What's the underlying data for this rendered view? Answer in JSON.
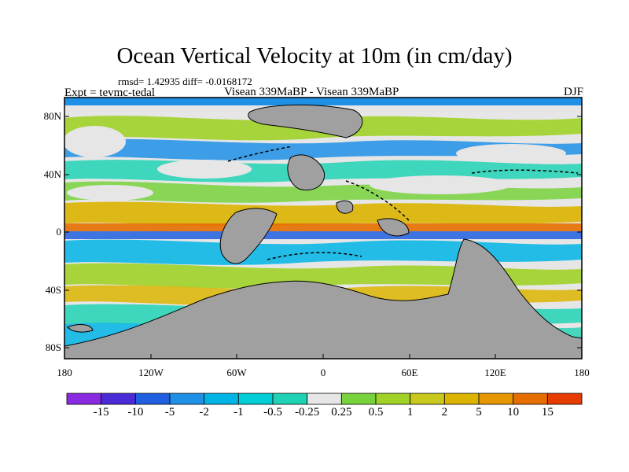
{
  "title": "Ocean Vertical Velocity at 10m (in cm/day)",
  "stats": "rmsd= 1.42935 diff= -0.0168172",
  "experiment": "Expt = tevmc-tedal",
  "subtitle": "Visean 339MaBP - Visean 339MaBP",
  "season": "DJF",
  "lat_ticks": [
    "80N",
    "40N",
    "0",
    "40S",
    "80S"
  ],
  "lon_ticks": [
    "180",
    "120W",
    "60W",
    "0",
    "60E",
    "120E",
    "180"
  ],
  "colorbar": {
    "colors": [
      "#8a2be2",
      "#4b2bd6",
      "#1f5fe0",
      "#1e90e6",
      "#00b4e6",
      "#00cdd6",
      "#20d2b4",
      "#e6e6e6",
      "#78d23c",
      "#a0d228",
      "#c8c81e",
      "#dcb400",
      "#e69600",
      "#e66e00",
      "#e63c00"
    ],
    "labels": [
      "-15",
      "-10",
      "-5",
      "-2",
      "-1",
      "-0.5",
      "-0.25",
      "0.25",
      "0.5",
      "1",
      "2",
      "5",
      "10",
      "15"
    ]
  },
  "map_colors": {
    "land": "#a0a0a0",
    "background": "#e6e6e6"
  }
}
